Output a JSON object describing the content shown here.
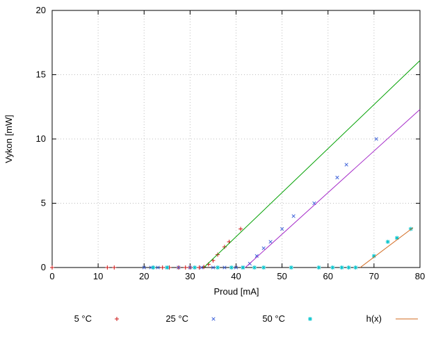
{
  "chart_data": {
    "type": "scatter",
    "title": "",
    "xlabel": "Proud [mA]",
    "ylabel": "Vykon [mW]",
    "xlim": [
      0,
      80
    ],
    "ylim": [
      0,
      20
    ],
    "xticks": [
      0,
      10,
      20,
      30,
      40,
      50,
      60,
      70,
      80
    ],
    "yticks": [
      0,
      5,
      10,
      15,
      20
    ],
    "grid": true,
    "legend_position": "bottom",
    "series": [
      {
        "id": "points-5c",
        "legend_label": "5 °C",
        "marker": "plus",
        "color": "#cc1414",
        "points": [
          [
            0,
            0
          ],
          [
            12,
            0
          ],
          [
            13.5,
            0
          ],
          [
            24,
            0
          ],
          [
            25.5,
            0
          ],
          [
            27.5,
            0
          ],
          [
            29,
            0
          ],
          [
            30,
            0
          ],
          [
            31,
            0
          ],
          [
            32,
            0
          ],
          [
            33,
            0.05
          ],
          [
            34,
            0.25
          ],
          [
            35,
            0.55
          ],
          [
            36,
            1.0
          ],
          [
            37.5,
            1.6
          ],
          [
            38.5,
            2.0
          ],
          [
            41,
            3.0
          ]
        ]
      },
      {
        "id": "points-25c",
        "legend_label": "25 °C",
        "marker": "cross",
        "color": "#3a5fd9",
        "points": [
          [
            20,
            0
          ],
          [
            21.5,
            0
          ],
          [
            23,
            0
          ],
          [
            25,
            0
          ],
          [
            27.5,
            0
          ],
          [
            30,
            0
          ],
          [
            32.5,
            0
          ],
          [
            35,
            0
          ],
          [
            37.5,
            0
          ],
          [
            40,
            0
          ],
          [
            41.5,
            0
          ],
          [
            43,
            0.3
          ],
          [
            44.5,
            0.9
          ],
          [
            46,
            1.5
          ],
          [
            47.5,
            2.0
          ],
          [
            50,
            3.0
          ],
          [
            52.5,
            4.0
          ],
          [
            57,
            5.0
          ],
          [
            62,
            7.0
          ],
          [
            64,
            8.0
          ],
          [
            70.5,
            10.0
          ]
        ]
      },
      {
        "id": "points-50c",
        "legend_label": "50 °C",
        "marker": "asterisk",
        "color": "#00c3cc",
        "points": [
          [
            22,
            0
          ],
          [
            25,
            0
          ],
          [
            31,
            0
          ],
          [
            36,
            0
          ],
          [
            39,
            0
          ],
          [
            41.5,
            0
          ],
          [
            44,
            0
          ],
          [
            46,
            0
          ],
          [
            52,
            0
          ],
          [
            58,
            0
          ],
          [
            61,
            0
          ],
          [
            63,
            0
          ],
          [
            64.5,
            0
          ],
          [
            66,
            0
          ],
          [
            70,
            0.9
          ],
          [
            73,
            2.0
          ],
          [
            75,
            2.3
          ],
          [
            78,
            3.0
          ]
        ]
      },
      {
        "id": "fit-line-5c",
        "legend_label": null,
        "type": "line",
        "color": "#00a000",
        "points": [
          [
            33,
            0
          ],
          [
            80,
            16.1
          ]
        ]
      },
      {
        "id": "fit-line-25c",
        "legend_label": null,
        "type": "line",
        "color": "#a428c8",
        "points": [
          [
            42,
            0
          ],
          [
            80,
            12.3
          ]
        ]
      },
      {
        "id": "line-hx",
        "legend_label": "h(x)",
        "type": "line",
        "color": "#d2691e",
        "points": [
          [
            67,
            0
          ],
          [
            78.5,
            3.1
          ]
        ]
      }
    ],
    "legend": [
      {
        "label": "5 °C",
        "marker": "plus",
        "color": "#cc1414"
      },
      {
        "label": "25 °C",
        "marker": "cross",
        "color": "#3a5fd9"
      },
      {
        "label": "50 °C",
        "marker": "asterisk",
        "color": "#00c3cc"
      },
      {
        "label": "h(x)",
        "marker": "line",
        "color": "#d2691e"
      }
    ],
    "colors": {
      "border": "#000000",
      "grid": "#bdbdbd",
      "background": "#ffffff",
      "text": "#000000"
    }
  }
}
